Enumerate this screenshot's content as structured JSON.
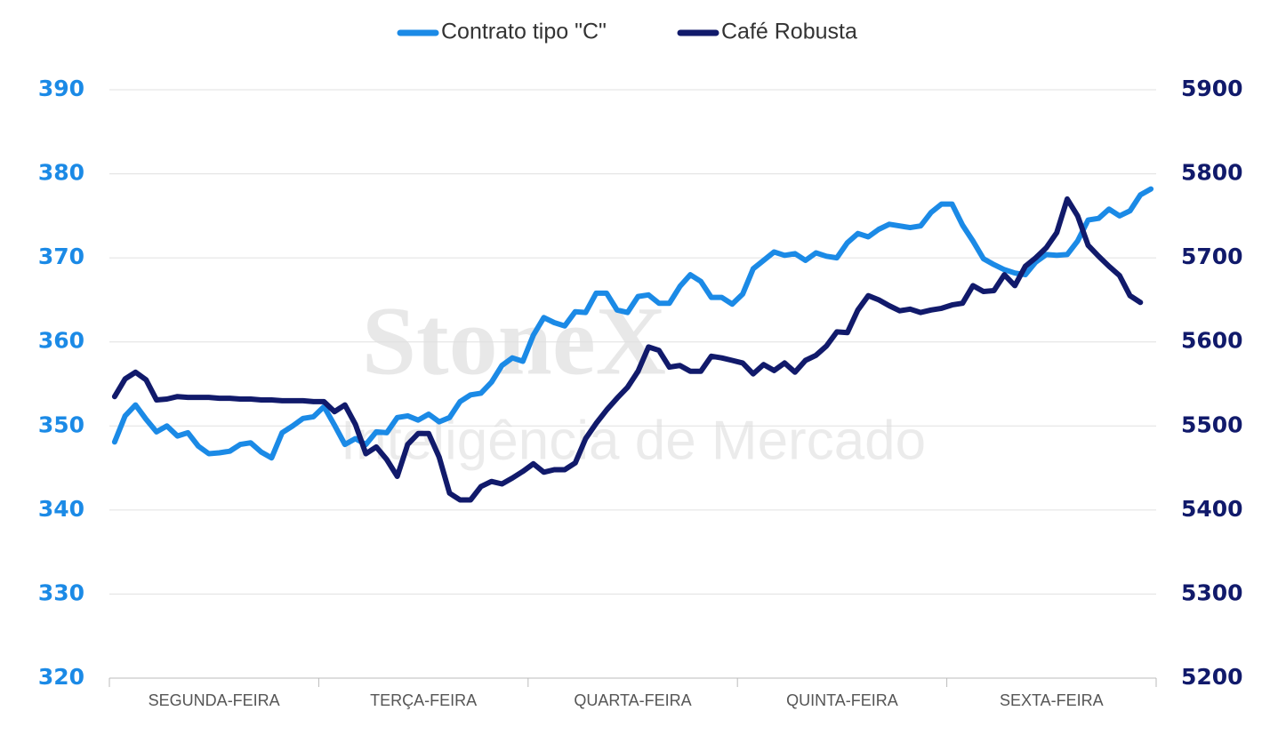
{
  "chart_data": {
    "type": "line",
    "watermark": {
      "brand": "StoneX",
      "subtitle": "Inteligência de Mercado"
    },
    "legend": "top",
    "grid": true,
    "categories": [
      null,
      null,
      null,
      null,
      null,
      null,
      null,
      null,
      null,
      null,
      "SEGUNDA-FEIRA",
      null,
      null,
      null,
      null,
      null,
      null,
      null,
      null,
      null,
      null,
      null,
      null,
      null,
      null,
      null,
      null,
      null,
      null,
      null,
      "TERÇA-FEIRA",
      null,
      null,
      null,
      null,
      null,
      null,
      null,
      null,
      null,
      null,
      null,
      null,
      null,
      null,
      null,
      null,
      null,
      null,
      null,
      "QUARTA-FEIRA",
      null,
      null,
      null,
      null,
      null,
      null,
      null,
      null,
      null,
      null,
      null,
      null,
      null,
      null,
      null,
      null,
      null,
      null,
      null,
      "QUINTA-FEIRA",
      null,
      null,
      null,
      null,
      null,
      null,
      null,
      null,
      null,
      null,
      null,
      null,
      null,
      null,
      null,
      null,
      null,
      null,
      null,
      "SEXTA-FEIRA",
      null,
      null,
      null,
      null,
      null,
      null,
      null,
      null,
      null
    ],
    "ylim": [
      320,
      390
    ],
    "yticks": [
      320,
      330,
      340,
      350,
      360,
      370,
      380,
      390
    ],
    "y2lim": [
      5200,
      5900
    ],
    "y2ticks": [
      5200,
      5300,
      5400,
      5500,
      5600,
      5700,
      5800,
      5900
    ],
    "series": [
      {
        "name": "Contrato tipo \"C\"",
        "color": "#1b8ae6",
        "axis": "y",
        "values": [
          348.1,
          351.2,
          352.5,
          350.8,
          349.3,
          350.0,
          348.8,
          349.2,
          347.6,
          346.7,
          346.8,
          347.0,
          347.8,
          348.0,
          346.9,
          346.2,
          349.2,
          350.0,
          350.9,
          351.1,
          352.3,
          350.1,
          347.8,
          348.5,
          347.8,
          349.3,
          349.2,
          351.0,
          351.2,
          350.7,
          351.4,
          350.5,
          351.0,
          352.9,
          353.7,
          353.9,
          355.2,
          357.2,
          358.1,
          357.7,
          360.8,
          362.9,
          362.3,
          361.9,
          363.6,
          363.5,
          365.8,
          365.8,
          363.8,
          363.5,
          365.4,
          365.6,
          364.6,
          364.6,
          366.6,
          368.0,
          367.2,
          365.3,
          365.3,
          364.5,
          365.7,
          368.7,
          369.7,
          370.7,
          370.3,
          370.5,
          369.7,
          370.6,
          370.2,
          370.0,
          371.8,
          372.9,
          372.5,
          373.4,
          374.0,
          373.8,
          373.6,
          373.8,
          375.4,
          376.4,
          376.4,
          373.9,
          372.0,
          369.9,
          369.2,
          368.6,
          368.2,
          368.0,
          369.5,
          370.4,
          370.3,
          370.4,
          372.0,
          374.5,
          374.7,
          375.8,
          375.0,
          375.6,
          377.5,
          378.2
        ]
      },
      {
        "name": "Café Robusta",
        "color": "#111a6b",
        "axis": "y2",
        "values": [
          5535,
          5556,
          5564,
          5555,
          5531,
          5532,
          5535,
          5534,
          5534,
          5534,
          5533,
          5533,
          5532,
          5532,
          5531,
          5531,
          5530,
          5530,
          5530,
          5529,
          5529,
          5517,
          5525,
          5502,
          5467,
          5475,
          5460,
          5440,
          5478,
          5491,
          5491,
          5463,
          5420,
          5412,
          5412,
          5428,
          5434,
          5431,
          5438,
          5446,
          5455,
          5445,
          5448,
          5448,
          5456,
          5485,
          5503,
          5519,
          5533,
          5546,
          5565,
          5594,
          5590,
          5570,
          5572,
          5565,
          5565,
          5583,
          5581,
          5578,
          5575,
          5562,
          5573,
          5566,
          5575,
          5564,
          5578,
          5584,
          5595,
          5612,
          5611,
          5638,
          5655,
          5650,
          5643,
          5637,
          5639,
          5635,
          5638,
          5640,
          5644,
          5646,
          5667,
          5660,
          5661,
          5680,
          5667,
          5690,
          5700,
          5712,
          5730,
          5770,
          5750,
          5715,
          5702,
          5690,
          5679,
          5655,
          5647,
          null
        ]
      }
    ]
  }
}
